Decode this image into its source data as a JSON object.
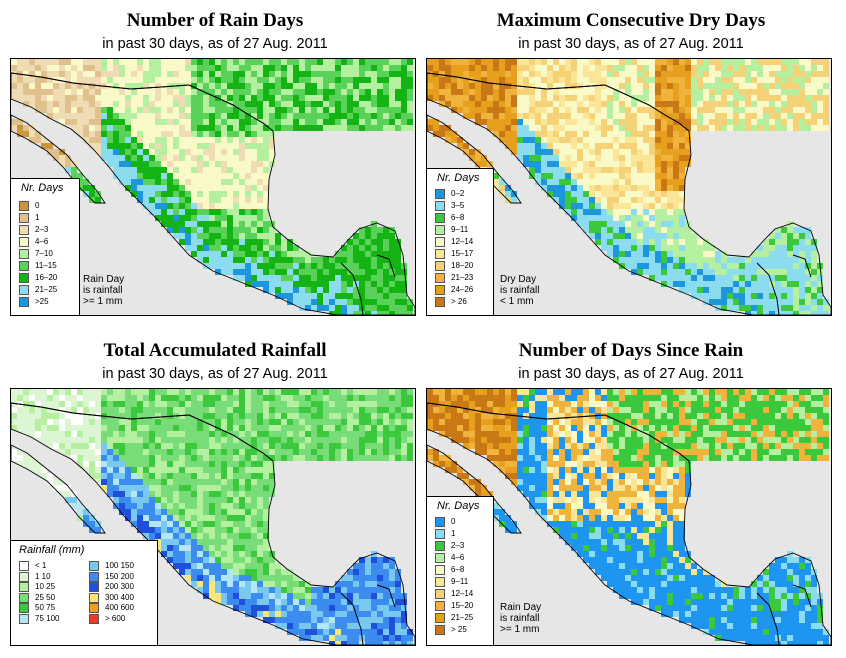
{
  "panels": [
    {
      "id": "rain_days",
      "title": "Number of Rain Days",
      "subtitle": "in past 30 days, as of  27 Aug. 2011",
      "legend_title": "Nr. Days",
      "classes": [
        {
          "label": "0",
          "color": "#c8963c"
        },
        {
          "label": "1",
          "color": "#e0c08c"
        },
        {
          "label": "2–3",
          "color": "#f0dcb4"
        },
        {
          "label": "4–6",
          "color": "#fafac8"
        },
        {
          "label": "7–10",
          "color": "#b4f0a0"
        },
        {
          "label": "11–15",
          "color": "#5ad25a"
        },
        {
          "label": "16–20",
          "color": "#14b414"
        },
        {
          "label": "21–25",
          "color": "#8cdcf0"
        },
        {
          "label": ">25",
          "color": "#1e96dc"
        }
      ],
      "note": [
        "Rain Day",
        "is rainfall",
        ">= 1 mm"
      ]
    },
    {
      "id": "dry_days",
      "title": "Maximum Consecutive Dry Days",
      "subtitle": "in past 30 days, as of  27 Aug. 2011",
      "legend_title": "Nr. Days",
      "classes": [
        {
          "label": "0–2",
          "color": "#1e96dc"
        },
        {
          "label": "3–5",
          "color": "#8cdcf0"
        },
        {
          "label": "6–8",
          "color": "#3cc83c"
        },
        {
          "label": "9–11",
          "color": "#b4f0a0"
        },
        {
          "label": "12–14",
          "color": "#fafac8"
        },
        {
          "label": "15–17",
          "color": "#fae696"
        },
        {
          "label": "18–20",
          "color": "#f5d278"
        },
        {
          "label": "21–23",
          "color": "#f0b43c"
        },
        {
          "label": "24–26",
          "color": "#e6a01e"
        },
        {
          "label": "> 26",
          "color": "#c87814"
        }
      ],
      "note": [
        "Dry Day",
        "is rainfall",
        "< 1 mm"
      ]
    },
    {
      "id": "accum_rain",
      "title": "Total Accumulated Rainfall",
      "subtitle": "in past 30 days, as of  27 Aug. 2011",
      "legend_title": "Rainfall (mm)",
      "classes": [
        {
          "label": "< 1",
          "color": "#ffffff"
        },
        {
          "label": "1    10",
          "color": "#dcf5d2"
        },
        {
          "label": "10    25",
          "color": "#b4f0a0"
        },
        {
          "label": "25    50",
          "color": "#78dc78"
        },
        {
          "label": "50    75",
          "color": "#3cc83c"
        },
        {
          "label": "75    100",
          "color": "#b4e6f5"
        },
        {
          "label": "100  150",
          "color": "#78c8f0"
        },
        {
          "label": "150  200",
          "color": "#3c8cf0"
        },
        {
          "label": "200  300",
          "color": "#1e50dc"
        },
        {
          "label": "300  400",
          "color": "#fae678"
        },
        {
          "label": "400  600",
          "color": "#f0a01e"
        },
        {
          "label": "> 600",
          "color": "#f03c1e"
        }
      ]
    },
    {
      "id": "since_rain",
      "title": "Number of Days Since Rain",
      "subtitle": "in past 30 days, as of  27 Aug. 2011",
      "legend_title": "Nr. Days",
      "classes": [
        {
          "label": "0",
          "color": "#1e96f0"
        },
        {
          "label": "1",
          "color": "#8cdcf0"
        },
        {
          "label": "2–3",
          "color": "#3cc83c"
        },
        {
          "label": "4–6",
          "color": "#b4f0a0"
        },
        {
          "label": "6–8",
          "color": "#fafac8"
        },
        {
          "label": "9–11",
          "color": "#fae696"
        },
        {
          "label": "12–14",
          "color": "#f5d278"
        },
        {
          "label": "15–20",
          "color": "#f0b43c"
        },
        {
          "label": "21–25",
          "color": "#e6a01e"
        },
        {
          "label": "> 25",
          "color": "#c87814"
        }
      ],
      "note": [
        "Rain Day",
        "is rainfall",
        ">= 1 mm"
      ]
    }
  ]
}
